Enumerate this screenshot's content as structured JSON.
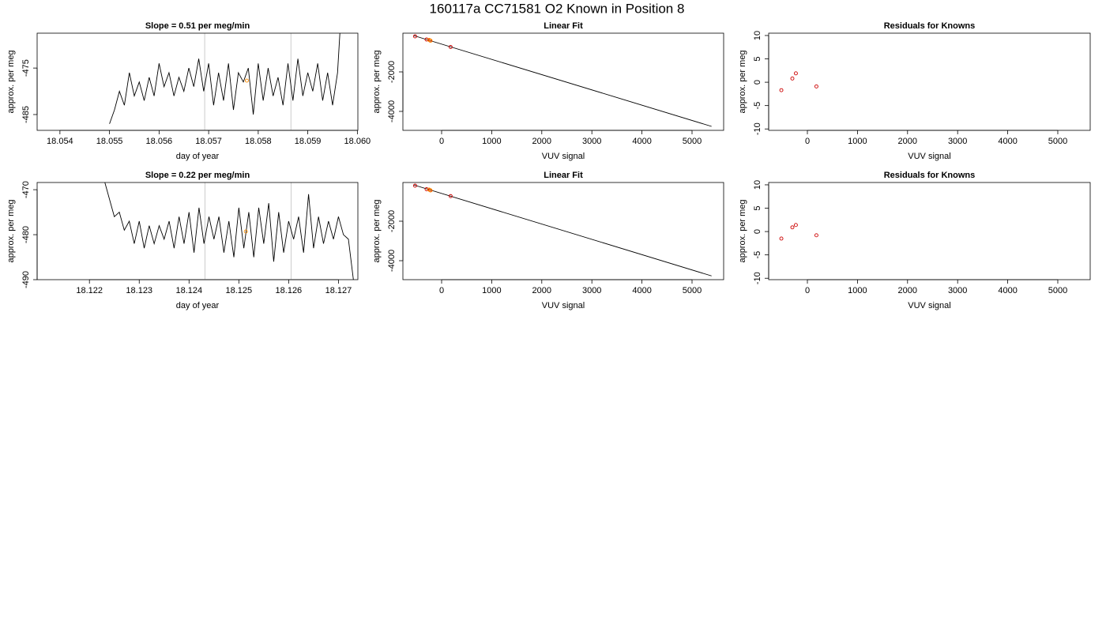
{
  "title": "160117a     CC71581   O2 Known in Position  8",
  "chart_data": [
    {
      "type": "line",
      "title": "Slope =  0.51  per meg/min",
      "xlabel": "day of year",
      "ylabel": "approx. per meg",
      "xlim": [
        18.05354,
        18.06001
      ],
      "ylim": [
        -488.4,
        -467.5
      ],
      "xticks": [
        18.054,
        18.055,
        18.056,
        18.057,
        18.058,
        18.059,
        {
          "value": 18.06,
          "label": "18.060"
        }
      ],
      "yticks": [
        -475,
        -485
      ],
      "vlines": [
        18.05692,
        18.05866
      ],
      "vline_color": "#cccccc",
      "series": [
        {
          "mark": "line",
          "color": "#000000",
          "x": [
            18.055,
            18.0551,
            18.0552,
            18.0553,
            18.0554,
            18.0555,
            18.0556,
            18.0557,
            18.0558,
            18.0559,
            18.056,
            18.0561,
            18.0562,
            18.0563,
            18.0564,
            18.0565,
            18.0566,
            18.0567,
            18.0568,
            18.0569,
            18.057,
            18.0571,
            18.0572,
            18.0573,
            18.0574,
            18.0575,
            18.0576,
            18.0577,
            18.0578,
            18.0579,
            18.058,
            18.0581,
            18.0582,
            18.0583,
            18.0584,
            18.0585,
            18.0586,
            18.0587,
            18.0588,
            18.0589,
            18.059,
            18.0591,
            18.0592,
            18.0593,
            18.0594,
            18.0595,
            18.0596,
            18.05965
          ],
          "values": [
            -487,
            -484,
            -480,
            -483,
            -476,
            -481,
            -478,
            -482,
            -477,
            -481,
            -474,
            -479,
            -476,
            -481,
            -477,
            -480,
            -475,
            -479,
            -473,
            -480,
            -474,
            -483,
            -476,
            -482,
            -474,
            -484,
            -476,
            -478,
            -475,
            -485,
            -474,
            -482,
            -475,
            -481,
            -477,
            -483,
            -474,
            -482,
            -473,
            -481,
            -476,
            -480,
            -474,
            -482,
            -476,
            -483,
            -476,
            -467
          ]
        },
        {
          "mark": "circle",
          "color": "#ff8c00",
          "x": [
            18.05777
          ],
          "values": [
            -477.7
          ]
        }
      ]
    },
    {
      "type": "line",
      "title": "Linear Fit",
      "xlabel": "VUV signal",
      "ylabel": "approx. per meg",
      "xlim": [
        -773,
        5631
      ],
      "ylim": [
        -4960,
        -40
      ],
      "xticks": [
        0,
        1000,
        2000,
        3000,
        4000,
        5000
      ],
      "yticks": [
        -2000,
        -4000
      ],
      "series": [
        {
          "mark": "line",
          "color": "#000000",
          "x": [
            -560,
            5390
          ],
          "values": [
            -160,
            -4760
          ]
        },
        {
          "mark": "circle",
          "color": "#cc0000",
          "x": [
            -530,
            -300,
            -230,
            180
          ],
          "values": [
            -200,
            -360,
            -410,
            -740
          ]
        },
        {
          "mark": "circle",
          "color": "#ff8c00",
          "x": [
            -250,
            -220
          ],
          "values": [
            -380,
            -420
          ]
        }
      ]
    },
    {
      "type": "scatter",
      "title": "Residuals for Knowns",
      "xlabel": "VUV signal",
      "ylabel": "approx. per meg",
      "xlim": [
        -773,
        5647
      ],
      "ylim": [
        -10.3,
        10.5
      ],
      "xticks": [
        0,
        1000,
        2000,
        3000,
        4000,
        5000
      ],
      "yticks": [
        -10,
        -5,
        0,
        5,
        10
      ],
      "series": [
        {
          "mark": "circle",
          "color": "#cc0000",
          "x": [
            -520,
            -300,
            -230,
            180
          ],
          "values": [
            -1.7,
            0.8,
            1.9,
            -0.9
          ]
        }
      ]
    },
    {
      "type": "line",
      "title": "Slope =  0.22  per meg/min",
      "xlabel": "day of year",
      "ylabel": "approx. per meg",
      "xlim": [
        18.12095,
        18.12739
      ],
      "ylim": [
        -490,
        -468.4
      ],
      "xticks": [
        18.122,
        18.123,
        18.124,
        18.125,
        18.126,
        18.127
      ],
      "yticks": [
        -470,
        -480,
        -490
      ],
      "vlines": [
        18.12432,
        18.12605
      ],
      "vline_color": "#cccccc",
      "series": [
        {
          "mark": "line",
          "color": "#000000",
          "x": [
            18.1223,
            18.1224,
            18.1225,
            18.1226,
            18.1227,
            18.1228,
            18.1229,
            18.123,
            18.1231,
            18.1232,
            18.1233,
            18.1234,
            18.1235,
            18.1236,
            18.1237,
            18.1238,
            18.1239,
            18.124,
            18.1241,
            18.1242,
            18.1243,
            18.1244,
            18.1245,
            18.1246,
            18.1247,
            18.1248,
            18.1249,
            18.125,
            18.1251,
            18.1252,
            18.1253,
            18.1254,
            18.1255,
            18.1256,
            18.1257,
            18.1258,
            18.1259,
            18.126,
            18.1261,
            18.1262,
            18.1263,
            18.1264,
            18.1265,
            18.1266,
            18.1267,
            18.1268,
            18.1269,
            18.127,
            18.1271,
            18.1272,
            18.1273
          ],
          "values": [
            -468,
            -472,
            -476,
            -475,
            -479,
            -477,
            -482,
            -477,
            -483,
            -478,
            -482,
            -478,
            -481,
            -477,
            -483,
            -476,
            -482,
            -475,
            -484,
            -474,
            -482,
            -476,
            -481,
            -476,
            -484,
            -477,
            -485,
            -474,
            -483,
            -475,
            -485,
            -474,
            -482,
            -473,
            -486,
            -475,
            -484,
            -477,
            -481,
            -476,
            -484,
            -471,
            -483,
            -476,
            -482,
            -477,
            -481,
            -476,
            -480,
            -481,
            -490
          ]
        },
        {
          "mark": "circle",
          "color": "#ff8c00",
          "x": [
            18.12514
          ],
          "values": [
            -479.3
          ]
        }
      ]
    },
    {
      "type": "line",
      "title": "Linear Fit",
      "xlabel": "VUV signal",
      "ylabel": "approx. per meg",
      "xlim": [
        -773,
        5631
      ],
      "ylim": [
        -4960,
        -40
      ],
      "xticks": [
        0,
        1000,
        2000,
        3000,
        4000,
        5000
      ],
      "yticks": [
        -2000,
        -4000
      ],
      "series": [
        {
          "mark": "line",
          "color": "#000000",
          "x": [
            -560,
            5390
          ],
          "values": [
            -160,
            -4770
          ]
        },
        {
          "mark": "circle",
          "color": "#cc0000",
          "x": [
            -530,
            -300,
            -230,
            180
          ],
          "values": [
            -200,
            -380,
            -430,
            -730
          ]
        },
        {
          "mark": "circle",
          "color": "#ff8c00",
          "x": [
            -250,
            -220
          ],
          "values": [
            -400,
            -440
          ]
        }
      ]
    },
    {
      "type": "scatter",
      "title": "Residuals for Knowns",
      "xlabel": "VUV signal",
      "ylabel": "approx. per meg",
      "xlim": [
        -773,
        5647
      ],
      "ylim": [
        -10.3,
        10.5
      ],
      "xticks": [
        0,
        1000,
        2000,
        3000,
        4000,
        5000
      ],
      "yticks": [
        -10,
        -5,
        0,
        5,
        10
      ],
      "series": [
        {
          "mark": "circle",
          "color": "#cc0000",
          "x": [
            -520,
            -300,
            -230,
            180
          ],
          "values": [
            -1.5,
            0.9,
            1.4,
            -0.8
          ]
        }
      ]
    }
  ]
}
